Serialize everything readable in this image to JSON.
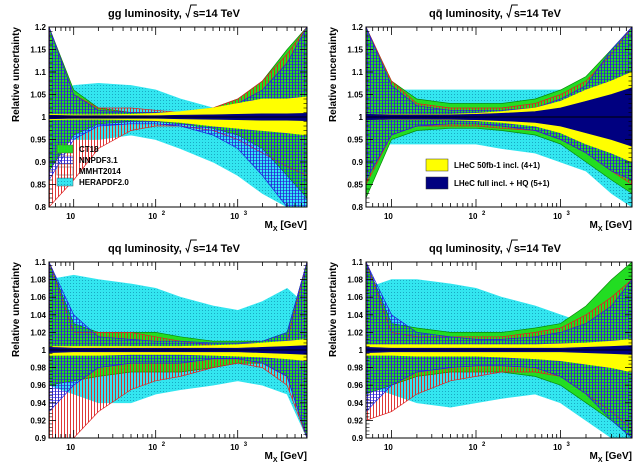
{
  "figure": {
    "xlabel_base": "M",
    "xlabel_sub": "X",
    "xlabel_unit": "[GeV]",
    "ylabel": "Relative uncertainty",
    "x_tick_labels": [
      "10",
      "10",
      "10"
    ],
    "x_tick_exponents": [
      "",
      "2",
      "3"
    ]
  },
  "chart_data": [
    {
      "type": "area",
      "title": "gg luminosity, √s=14 TeV",
      "title_parts": {
        "a": "gg",
        "b": " luminosity,  ",
        "c": "s=14 TeV"
      },
      "x": [
        5,
        10,
        20,
        50,
        100,
        200,
        500,
        1000,
        2000,
        4000,
        7000
      ],
      "xlim": [
        5,
        7000
      ],
      "xscale": "log",
      "ylim": [
        0.8,
        1.2
      ],
      "yticks": [
        0.8,
        0.85,
        0.9,
        0.95,
        1,
        1.05,
        1.1,
        1.15,
        1.2
      ],
      "yticklabels": [
        "0.8",
        "0.85",
        "0.9",
        "0.95",
        "1",
        "1.05",
        "1.1",
        "1.15",
        "1.2"
      ],
      "legend": {
        "position": "bottom-left",
        "entries": [
          "CT18",
          "NNPDF3.1",
          "MMHT2014",
          "HERAPDF2.0"
        ]
      },
      "series": [
        {
          "name": "HERAPDF2.0",
          "color": "#33e6f0",
          "upper": [
            1.03,
            1.07,
            1.075,
            1.07,
            1.06,
            1.04,
            1.02,
            1.005,
            0.99,
            0.97,
            0.96
          ],
          "lower": [
            0.96,
            0.95,
            0.95,
            0.96,
            0.95,
            0.93,
            0.9,
            0.87,
            0.83,
            0.8,
            0.8
          ]
        },
        {
          "name": "CT18",
          "color": "#22dd22",
          "upper": [
            1.2,
            1.06,
            1.02,
            1.01,
            1.01,
            1.01,
            1.02,
            1.04,
            1.08,
            1.15,
            1.2
          ],
          "lower": [
            0.88,
            0.96,
            0.985,
            0.99,
            0.99,
            0.985,
            0.975,
            0.96,
            0.93,
            0.87,
            0.82
          ]
        },
        {
          "name": "MMHT2014",
          "color": "#dd2222",
          "upper": [
            1.2,
            1.05,
            1.02,
            1.02,
            1.015,
            1.01,
            1.02,
            1.04,
            1.08,
            1.14,
            1.2
          ],
          "lower": [
            0.8,
            0.86,
            0.93,
            0.97,
            0.98,
            0.98,
            0.97,
            0.95,
            0.92,
            0.89,
            0.87
          ]
        },
        {
          "name": "NNPDF3.1",
          "color": "#2222dd",
          "upper": [
            1.2,
            1.05,
            1.015,
            1.01,
            1.01,
            1.01,
            1.015,
            1.03,
            1.06,
            1.12,
            1.2
          ],
          "lower": [
            0.86,
            0.95,
            0.98,
            0.985,
            0.985,
            0.98,
            0.96,
            0.93,
            0.87,
            0.8,
            0.8
          ]
        },
        {
          "name": "LHeC 50fb-1 incl. (4+1)",
          "color": "#ffff00",
          "upper": [
            1.006,
            1.005,
            1.005,
            1.006,
            1.008,
            1.012,
            1.02,
            1.03,
            1.04,
            1.04,
            1.045
          ],
          "lower": [
            0.994,
            0.995,
            0.995,
            0.994,
            0.992,
            0.988,
            0.98,
            0.975,
            0.97,
            0.965,
            0.96
          ]
        },
        {
          "name": "LHeC full incl. + HQ (5+1)",
          "color": "#000080",
          "upper": [
            1.004,
            1.003,
            1.003,
            1.003,
            1.003,
            1.004,
            1.005,
            1.006,
            1.007,
            1.007,
            1.008
          ],
          "lower": [
            0.996,
            0.997,
            0.997,
            0.997,
            0.997,
            0.996,
            0.995,
            0.994,
            0.993,
            0.993,
            0.992
          ]
        }
      ]
    },
    {
      "type": "area",
      "title": "qq̄ luminosity, √s=14 TeV",
      "title_parts": {
        "a": "qq̄",
        "b": " luminosity,  ",
        "c": "s=14 TeV"
      },
      "x": [
        5,
        10,
        20,
        50,
        100,
        200,
        500,
        1000,
        2000,
        4000,
        7000
      ],
      "xlim": [
        5,
        7000
      ],
      "xscale": "log",
      "ylim": [
        0.8,
        1.2
      ],
      "yticks": [
        0.8,
        0.85,
        0.9,
        0.95,
        1,
        1.05,
        1.1,
        1.15,
        1.2
      ],
      "yticklabels": [
        "0.8",
        "0.85",
        "0.9",
        "0.95",
        "1",
        "1.05",
        "1.1",
        "1.15",
        "1.2"
      ],
      "legend": {
        "position": "bottom-right",
        "entries": [
          "LHeC 50fb-1 incl. (4+1)",
          "LHeC full incl. + HQ (5+1)"
        ]
      },
      "series": [
        {
          "name": "HERAPDF2.0",
          "color": "#33e6f0",
          "upper": [
            1.06,
            1.06,
            1.06,
            1.06,
            1.06,
            1.06,
            1.06,
            1.06,
            1.07,
            1.09,
            1.1
          ],
          "lower": [
            0.94,
            0.94,
            0.94,
            0.94,
            0.94,
            0.93,
            0.92,
            0.9,
            0.88,
            0.83,
            0.8
          ]
        },
        {
          "name": "CT18",
          "color": "#22dd22",
          "upper": [
            1.2,
            1.08,
            1.04,
            1.03,
            1.03,
            1.03,
            1.04,
            1.06,
            1.09,
            1.15,
            1.2
          ],
          "lower": [
            0.82,
            0.95,
            0.97,
            0.975,
            0.975,
            0.97,
            0.96,
            0.94,
            0.9,
            0.86,
            0.83
          ]
        },
        {
          "name": "MMHT2014",
          "color": "#dd2222",
          "upper": [
            1.2,
            1.08,
            1.03,
            1.02,
            1.02,
            1.02,
            1.03,
            1.05,
            1.08,
            1.14,
            1.2
          ],
          "lower": [
            0.85,
            0.96,
            0.98,
            0.98,
            0.98,
            0.975,
            0.97,
            0.95,
            0.92,
            0.88,
            0.85
          ]
        },
        {
          "name": "NNPDF3.1",
          "color": "#2222dd",
          "upper": [
            1.2,
            1.07,
            1.025,
            1.015,
            1.015,
            1.015,
            1.02,
            1.04,
            1.07,
            1.15,
            1.2
          ],
          "lower": [
            0.86,
            0.96,
            0.98,
            0.985,
            0.985,
            0.98,
            0.97,
            0.95,
            0.92,
            0.88,
            0.86
          ]
        },
        {
          "name": "LHeC 50fb-1 incl. (4+1)",
          "color": "#ffff00",
          "upper": [
            1.006,
            1.006,
            1.006,
            1.006,
            1.008,
            1.012,
            1.02,
            1.035,
            1.06,
            1.08,
            1.1
          ],
          "lower": [
            0.994,
            0.994,
            0.994,
            0.994,
            0.992,
            0.988,
            0.98,
            0.965,
            0.94,
            0.92,
            0.9
          ]
        },
        {
          "name": "LHeC full incl. + HQ (5+1)",
          "color": "#000080",
          "upper": [
            1.006,
            1.005,
            1.005,
            1.005,
            1.006,
            1.008,
            1.012,
            1.02,
            1.035,
            1.05,
            1.065
          ],
          "lower": [
            0.994,
            0.995,
            0.995,
            0.995,
            0.994,
            0.992,
            0.988,
            0.98,
            0.965,
            0.95,
            0.935
          ]
        }
      ]
    },
    {
      "type": "area",
      "title": "qq luminosity, √s=14 TeV",
      "title_parts": {
        "a": "qq",
        "b": " luminosity,  ",
        "c": "s=14 TeV"
      },
      "x": [
        5,
        10,
        20,
        50,
        100,
        200,
        500,
        1000,
        2000,
        4000,
        7000
      ],
      "xlim": [
        5,
        7000
      ],
      "xscale": "log",
      "ylim": [
        0.9,
        1.1
      ],
      "yticks": [
        0.9,
        0.92,
        0.94,
        0.96,
        0.98,
        1,
        1.02,
        1.04,
        1.06,
        1.08,
        1.1
      ],
      "yticklabels": [
        "0.9",
        "0.92",
        "0.94",
        "0.96",
        "0.98",
        "1",
        "1.02",
        "1.04",
        "1.06",
        "1.08",
        "1.1"
      ],
      "series": [
        {
          "name": "HERAPDF2.0",
          "color": "#33e6f0",
          "upper": [
            1.08,
            1.085,
            1.08,
            1.075,
            1.07,
            1.06,
            1.05,
            1.045,
            1.055,
            1.07,
            1.05
          ],
          "lower": [
            0.96,
            0.95,
            0.94,
            0.94,
            0.95,
            0.955,
            0.96,
            0.965,
            0.96,
            0.95,
            0.9
          ]
        },
        {
          "name": "CT18",
          "color": "#22dd22",
          "upper": [
            1.1,
            1.03,
            1.02,
            1.02,
            1.02,
            1.015,
            1.01,
            1.01,
            1.01,
            1.02,
            1.1
          ],
          "lower": [
            0.96,
            0.965,
            0.97,
            0.975,
            0.975,
            0.975,
            0.98,
            0.985,
            0.985,
            0.97,
            0.9
          ]
        },
        {
          "name": "MMHT2014",
          "color": "#dd2222",
          "upper": [
            1.1,
            1.02,
            1.02,
            1.02,
            1.015,
            1.01,
            1.005,
            1.005,
            1.005,
            1.01,
            1.1
          ],
          "lower": [
            0.9,
            0.9,
            0.93,
            0.955,
            0.965,
            0.97,
            0.98,
            0.985,
            0.98,
            0.96,
            0.9
          ]
        },
        {
          "name": "NNPDF3.1",
          "color": "#2222dd",
          "upper": [
            1.1,
            1.04,
            1.015,
            1.012,
            1.01,
            1.01,
            1.008,
            1.008,
            1.01,
            1.02,
            1.1
          ],
          "lower": [
            0.93,
            0.96,
            0.98,
            0.985,
            0.985,
            0.985,
            0.99,
            0.99,
            0.985,
            0.97,
            0.9
          ]
        },
        {
          "name": "LHeC 50fb-1 incl. (4+1)",
          "color": "#ffff00",
          "upper": [
            1.004,
            1.004,
            1.004,
            1.004,
            1.004,
            1.004,
            1.005,
            1.006,
            1.008,
            1.01,
            1.012
          ],
          "lower": [
            0.994,
            0.994,
            0.994,
            0.995,
            0.995,
            0.995,
            0.994,
            0.993,
            0.992,
            0.99,
            0.988
          ]
        },
        {
          "name": "LHeC full incl. + HQ (5+1)",
          "color": "#000080",
          "upper": [
            1.003,
            1.002,
            1.002,
            1.002,
            1.002,
            1.002,
            1.002,
            1.002,
            1.003,
            1.004,
            1.005
          ],
          "lower": [
            0.997,
            0.998,
            0.998,
            0.998,
            0.998,
            0.998,
            0.998,
            0.998,
            0.997,
            0.996,
            0.995
          ]
        }
      ]
    },
    {
      "type": "area",
      "title": "qq luminosity, √s=14 TeV",
      "title_parts": {
        "a": "qq",
        "b": " luminosity,  ",
        "c": "s=14 TeV"
      },
      "x": [
        5,
        10,
        20,
        50,
        100,
        200,
        500,
        1000,
        2000,
        4000,
        7000
      ],
      "xlim": [
        5,
        7000
      ],
      "xscale": "log",
      "ylim": [
        0.9,
        1.1
      ],
      "yticks": [
        0.9,
        0.92,
        0.94,
        0.96,
        0.98,
        1,
        1.02,
        1.04,
        1.06,
        1.08,
        1.1
      ],
      "yticklabels": [
        "0.9",
        "0.92",
        "0.94",
        "0.96",
        "0.98",
        "1",
        "1.02",
        "1.04",
        "1.06",
        "1.08",
        "1.1"
      ],
      "series": [
        {
          "name": "HERAPDF2.0",
          "color": "#33e6f0",
          "upper": [
            1.07,
            1.08,
            1.08,
            1.075,
            1.07,
            1.06,
            1.05,
            1.04,
            1.03,
            1.02,
            1.0
          ],
          "lower": [
            0.96,
            0.95,
            0.94,
            0.935,
            0.94,
            0.945,
            0.95,
            0.94,
            0.92,
            0.9,
            0.9
          ]
        },
        {
          "name": "CT18",
          "color": "#22dd22",
          "upper": [
            1.1,
            1.03,
            1.025,
            1.02,
            1.02,
            1.02,
            1.025,
            1.03,
            1.05,
            1.08,
            1.1
          ],
          "lower": [
            0.95,
            0.96,
            0.97,
            0.975,
            0.975,
            0.975,
            0.97,
            0.96,
            0.94,
            0.92,
            0.9
          ]
        },
        {
          "name": "MMHT2014",
          "color": "#dd2222",
          "upper": [
            1.1,
            1.02,
            1.015,
            1.015,
            1.015,
            1.015,
            1.02,
            1.025,
            1.04,
            1.06,
            1.08
          ],
          "lower": [
            0.92,
            0.93,
            0.95,
            0.965,
            0.97,
            0.975,
            0.975,
            0.97,
            0.95,
            0.93,
            0.91
          ]
        },
        {
          "name": "NNPDF3.1",
          "color": "#2222dd",
          "upper": [
            1.1,
            1.04,
            1.02,
            1.015,
            1.012,
            1.012,
            1.015,
            1.02,
            1.03,
            1.05,
            1.08
          ],
          "lower": [
            0.93,
            0.96,
            0.975,
            0.98,
            0.982,
            0.982,
            0.98,
            0.97,
            0.95,
            0.92,
            0.9
          ]
        },
        {
          "name": "LHeC 50fb-1 incl. (4+1)",
          "color": "#ffff00",
          "upper": [
            1.006,
            1.006,
            1.006,
            1.006,
            1.006,
            1.006,
            1.006,
            1.007,
            1.008,
            1.01,
            1.012
          ],
          "lower": [
            0.994,
            0.994,
            0.993,
            0.993,
            0.993,
            0.992,
            0.99,
            0.988,
            0.984,
            0.98,
            0.975
          ]
        },
        {
          "name": "LHeC full incl. + HQ (5+1)",
          "color": "#000080",
          "upper": [
            1.003,
            1.002,
            1.002,
            1.002,
            1.002,
            1.002,
            1.002,
            1.002,
            1.003,
            1.004,
            1.005
          ],
          "lower": [
            0.997,
            0.998,
            0.998,
            0.998,
            0.998,
            0.998,
            0.998,
            0.998,
            0.997,
            0.996,
            0.995
          ]
        }
      ]
    }
  ]
}
